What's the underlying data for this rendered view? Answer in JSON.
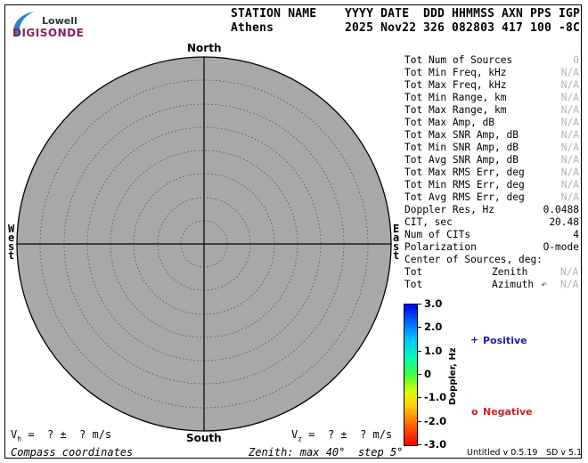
{
  "logo": {
    "line1": "Lowell",
    "line2": "DIGISONDE",
    "color": "#8a1f5a"
  },
  "header": {
    "labels": [
      "STATION NAME",
      "YYYY DATE",
      "DDD",
      "HHMMSS",
      "AXN",
      "PPS",
      "IGP"
    ],
    "values": [
      "Athens",
      "2025 Nov22",
      "326",
      "082803",
      "417",
      "100",
      "-8C"
    ]
  },
  "stats": [
    {
      "label": "Tot Num of Sources",
      "value": "0",
      "muted": true
    },
    {
      "label": "Tot Min Freq, kHz",
      "value": "N/A",
      "muted": true
    },
    {
      "label": "Tot Max Freq, kHz",
      "value": "N/A",
      "muted": true
    },
    {
      "label": "Tot Min Range, km",
      "value": "N/A",
      "muted": true
    },
    {
      "label": "Tot Max Range, km",
      "value": "N/A",
      "muted": true
    },
    {
      "label": "Tot Max Amp, dB",
      "value": "N/A",
      "muted": true
    },
    {
      "label": "Tot Max SNR Amp, dB",
      "value": "N/A",
      "muted": true
    },
    {
      "label": "Tot Min SNR Amp, dB",
      "value": "N/A",
      "muted": true
    },
    {
      "label": "Tot Avg SNR Amp, dB",
      "value": "N/A",
      "muted": true
    },
    {
      "label": "Tot Max RMS Err, deg",
      "value": "N/A",
      "muted": true
    },
    {
      "label": "Tot Min RMS Err, deg",
      "value": "N/A",
      "muted": true
    },
    {
      "label": "Tot Avg RMS Err, deg",
      "value": "N/A",
      "muted": true
    },
    {
      "label": "Doppler Res, Hz",
      "value": "0.0488",
      "muted": false
    },
    {
      "label": "CIT, sec",
      "value": "20.48",
      "muted": false
    },
    {
      "label": "Num of CITs",
      "value": "4",
      "muted": false
    },
    {
      "label": "Polarization",
      "value": "O-mode",
      "muted": false
    }
  ],
  "center": {
    "title": "Center of Sources, deg:",
    "zenith_label": "Tot",
    "zenith_name": "Zenith",
    "zenith_value": "N/A",
    "azimuth_label": "Tot",
    "azimuth_name": "Azimuth",
    "azimuth_arrow": "↶",
    "azimuth_value": "N/A"
  },
  "compass": {
    "north": "North",
    "south": "South",
    "east": "East",
    "west": "West"
  },
  "doppler_scale": {
    "title": "Doppler, Hz",
    "ticks": [
      "3.0",
      "2.0",
      "1.0",
      "0",
      "-1.0",
      "-2.0",
      "-3.0"
    ]
  },
  "legend": {
    "positive_symbol": "+",
    "positive_label": "Positive",
    "positive_color": "#1c1cb4",
    "negative_symbol": "o",
    "negative_label": "Negative",
    "negative_color": "#d21e1e"
  },
  "velocity": {
    "vh_prefix": "V",
    "vh_sub": "h",
    "vh_text": " =  ? ±  ? m/s",
    "vz_prefix": "V",
    "vz_sub": "z",
    "vz_text": " =  ? ±  ? m/s"
  },
  "footer": {
    "left": "Compass coordinates",
    "center": "Zenith: max 40°  step 5°",
    "version": "Untitled v 0.5.19",
    "sd": "SD v 5.1"
  }
}
